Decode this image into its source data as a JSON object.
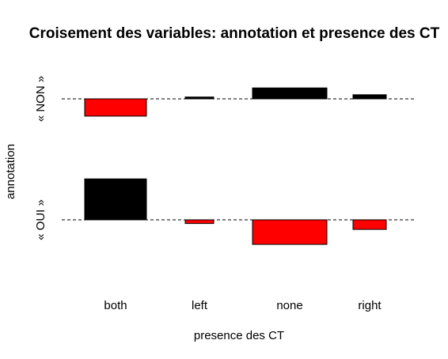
{
  "chart_data": {
    "type": "bar",
    "title": "Croisement des variables: annotation et presence des CT",
    "xlabel": "presence des CT",
    "ylabel": "annotation",
    "row_labels": [
      "« NON »",
      "« OUI »"
    ],
    "categories": [
      "both",
      "left",
      "none",
      "right"
    ],
    "bar_fill_positive": "#000000",
    "bar_fill_negative": "#ff0000",
    "series": [
      {
        "values": [
          -1.9,
          0.2,
          1.2,
          0.45
        ]
      },
      {
        "values": [
          4.5,
          -0.4,
          -2.7,
          -1.05
        ]
      }
    ]
  }
}
